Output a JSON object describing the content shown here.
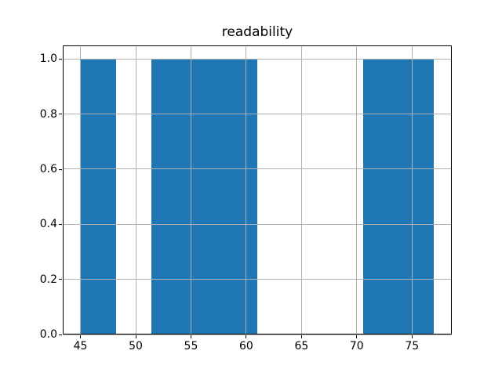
{
  "chart_data": {
    "type": "bar",
    "subtype": "histogram",
    "title": "readability",
    "bin_edges": [
      45.0,
      48.2,
      51.4,
      54.6,
      57.8,
      61.0,
      64.2,
      67.4,
      70.6,
      73.8,
      77.0
    ],
    "counts": [
      1,
      0,
      1,
      1,
      1,
      0,
      0,
      0,
      1,
      1
    ],
    "xlim": [
      43.4,
      78.6
    ],
    "ylim": [
      0.0,
      1.05
    ],
    "x_ticks": [
      45,
      50,
      55,
      60,
      65,
      70,
      75
    ],
    "x_tick_labels": [
      "45",
      "50",
      "55",
      "60",
      "65",
      "70",
      "75"
    ],
    "y_ticks": [
      0.0,
      0.2,
      0.4,
      0.6,
      0.8,
      1.0
    ],
    "y_tick_labels": [
      "0.0",
      "0.2",
      "0.4",
      "0.6",
      "0.8",
      "1.0"
    ],
    "xlabel": "",
    "ylabel": "",
    "grid": true,
    "legend_position": "none",
    "colors": {
      "bar": "#1f77b4",
      "grid": "#b0b0b0",
      "axis": "#000000",
      "background": "#ffffff",
      "text": "#000000"
    }
  }
}
